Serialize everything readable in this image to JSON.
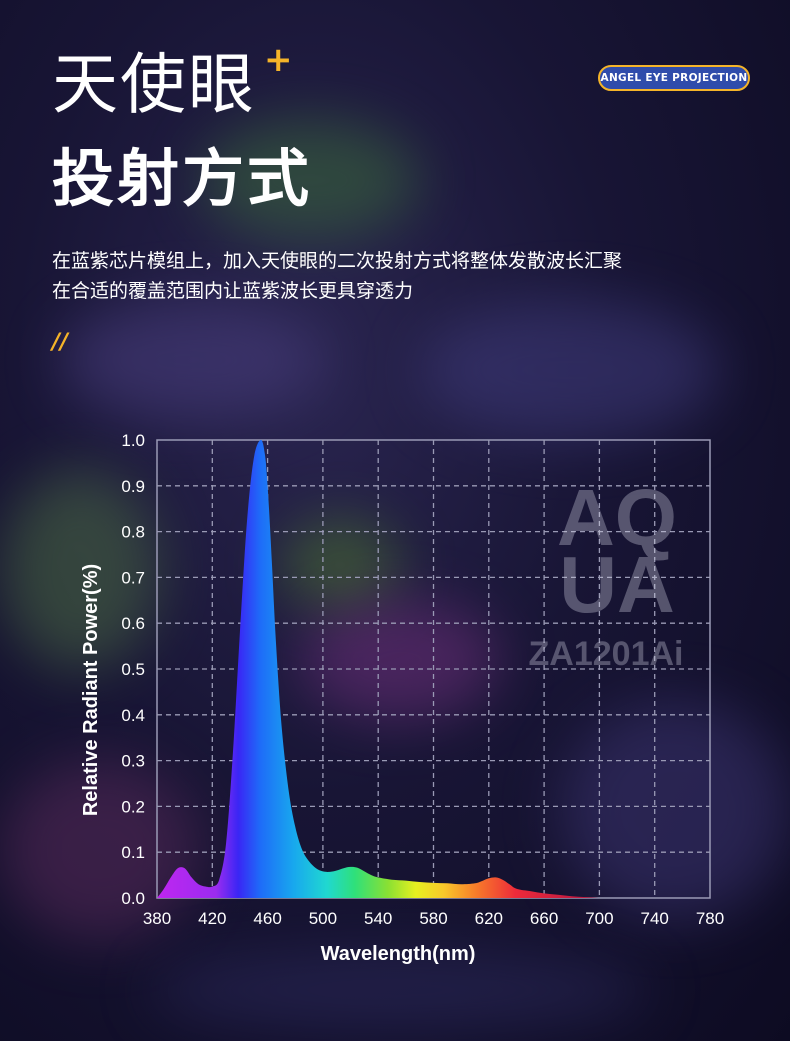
{
  "header": {
    "title_line1": "天使眼",
    "plus_mark": "+",
    "title_line2": "投射方式",
    "badge": "ANGEL EYE PROJECTION",
    "description_line1": "在蓝紫芯片模组上，加入天使眼的二次投射方式将整体发散波长汇聚",
    "description_line2": "在合适的覆盖范围内让蓝紫波长更具穿透力",
    "slashes": "//"
  },
  "watermark": {
    "brand_line1": "AQ",
    "brand_line2": "UA",
    "model": "ZA1201Ai"
  },
  "colors": {
    "accent": "#f5b429",
    "badge_bg": "#2f4cab",
    "grid": "#9a9ab5"
  },
  "chart_data": {
    "type": "area",
    "xlabel": "Wavelength(nm)",
    "ylabel": "Relative Radiant Power(%)",
    "xlim": [
      380,
      780
    ],
    "ylim": [
      0,
      1.0
    ],
    "x_ticks": [
      "380",
      "420",
      "460",
      "500",
      "540",
      "580",
      "620",
      "660",
      "700",
      "740",
      "780"
    ],
    "y_ticks": [
      "0.0",
      "0.1",
      "0.2",
      "0.3",
      "0.4",
      "0.5",
      "0.6",
      "0.7",
      "0.8",
      "0.9",
      "1.0"
    ],
    "grid": true,
    "x": [
      380,
      385,
      390,
      395,
      400,
      405,
      410,
      415,
      420,
      425,
      430,
      435,
      440,
      445,
      450,
      455,
      458,
      460,
      463,
      466,
      470,
      475,
      480,
      485,
      490,
      495,
      500,
      505,
      510,
      515,
      520,
      525,
      530,
      535,
      540,
      550,
      560,
      570,
      580,
      590,
      600,
      610,
      615,
      620,
      625,
      630,
      635,
      640,
      650,
      660,
      670,
      680,
      690,
      700
    ],
    "values": [
      0.0,
      0.02,
      0.045,
      0.065,
      0.065,
      0.045,
      0.03,
      0.025,
      0.025,
      0.04,
      0.12,
      0.32,
      0.58,
      0.82,
      0.96,
      1.0,
      0.97,
      0.9,
      0.74,
      0.56,
      0.38,
      0.24,
      0.155,
      0.105,
      0.08,
      0.065,
      0.058,
      0.057,
      0.06,
      0.065,
      0.068,
      0.066,
      0.058,
      0.05,
      0.045,
      0.04,
      0.038,
      0.035,
      0.033,
      0.032,
      0.03,
      0.032,
      0.037,
      0.043,
      0.045,
      0.04,
      0.03,
      0.02,
      0.015,
      0.01,
      0.007,
      0.004,
      0.002,
      0.0
    ]
  }
}
